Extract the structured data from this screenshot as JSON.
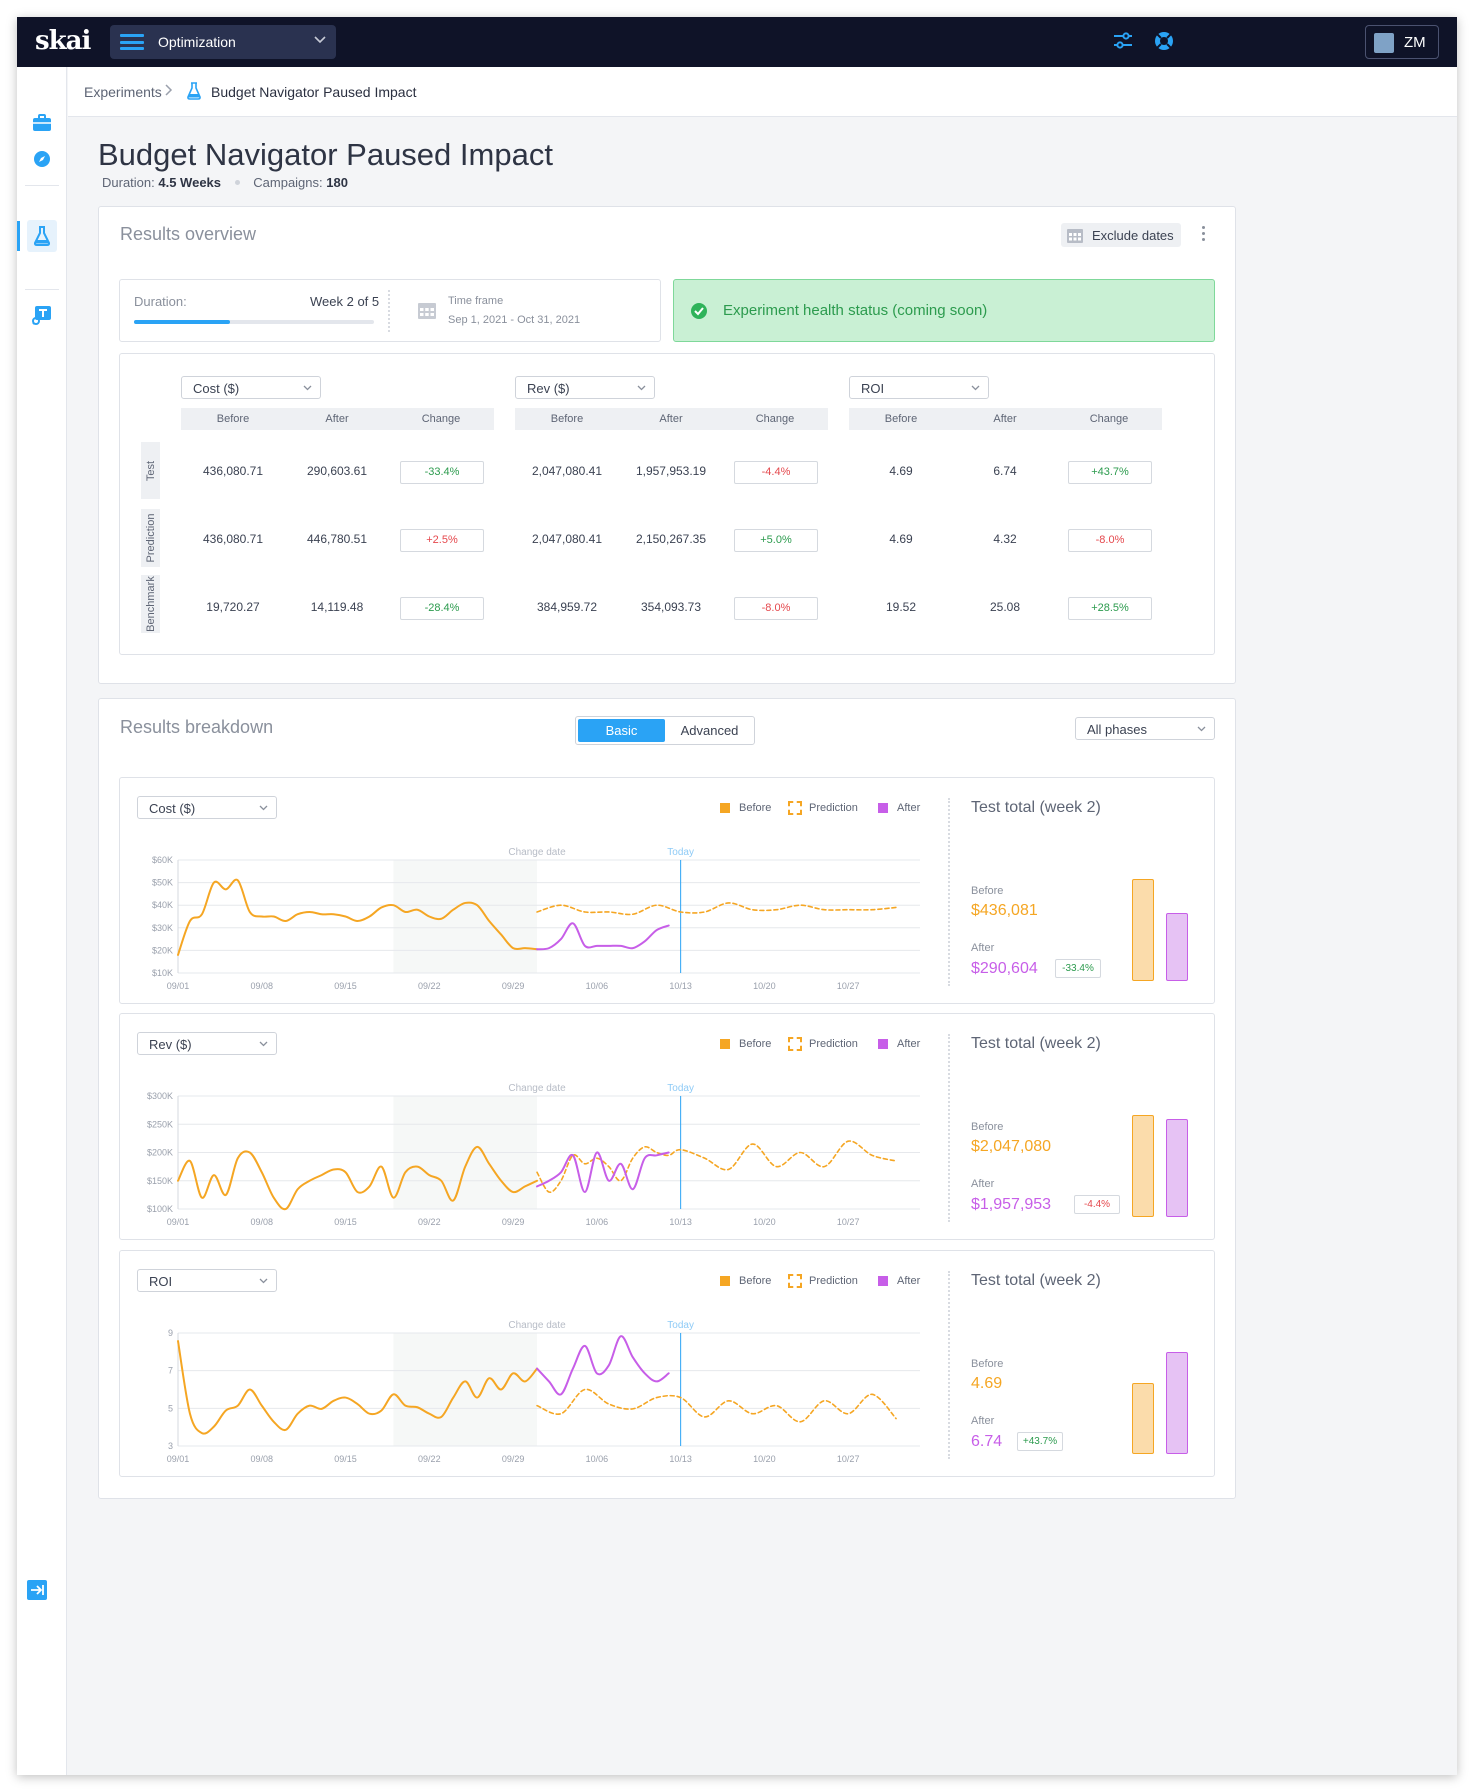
{
  "app": {
    "logo": "skai",
    "module": "Optimization",
    "user_initials": "ZM"
  },
  "breadcrumb": {
    "root": "Experiments",
    "current": "Budget Navigator Paused Impact"
  },
  "page": {
    "title": "Budget Navigator Paused Impact",
    "duration_label": "Duration:",
    "duration_value": "4.5 Weeks",
    "campaigns_label": "Campaigns:",
    "campaigns_value": "180"
  },
  "overview": {
    "title": "Results overview",
    "exclude_dates": "Exclude dates",
    "duration_label": "Duration:",
    "week_text": "Week 2 of 5",
    "progress_fraction": 0.4,
    "timeframe_label": "Time frame",
    "timeframe_value": "Sep 1, 2021 - Oct 31, 2021",
    "health": "Experiment health status (coming soon)"
  },
  "table": {
    "groups": [
      {
        "metric": "Cost ($)"
      },
      {
        "metric": "Rev ($)"
      },
      {
        "metric": "ROI"
      }
    ],
    "columns": [
      "Before",
      "After",
      "Change"
    ],
    "row_labels": [
      "Test",
      "Prediction",
      "Benchmark"
    ],
    "rows": [
      [
        [
          "436,080.71",
          "290,603.61",
          "-33.4%"
        ],
        [
          "2,047,080.41",
          "1,957,953.19",
          "-4.4%"
        ],
        [
          "4.69",
          "6.74",
          "+43.7%"
        ]
      ],
      [
        [
          "436,080.71",
          "446,780.51",
          "+2.5%"
        ],
        [
          "2,047,080.41",
          "2,150,267.35",
          "+5.0%"
        ],
        [
          "4.69",
          "4.32",
          "-8.0%"
        ]
      ],
      [
        [
          "19,720.27",
          "14,119.48",
          "-28.4%"
        ],
        [
          "384,959.72",
          "354,093.73",
          "-8.0%"
        ],
        [
          "19.52",
          "25.08",
          "+28.5%"
        ]
      ]
    ],
    "change_positive": [
      [
        true,
        false,
        true
      ],
      [
        false,
        true,
        false
      ],
      [
        true,
        false,
        true
      ]
    ]
  },
  "breakdown": {
    "title": "Results breakdown",
    "toggle": [
      "Basic",
      "Advanced"
    ],
    "phase_select": "All phases",
    "legend": [
      "Before",
      "Prediction",
      "After"
    ],
    "colors": {
      "before": "#f5a623",
      "after": "#c75ee8",
      "today": "#2aa3f5",
      "accent": "#2aa3f5"
    },
    "change_label": "Change date",
    "today_label": "Today",
    "total_title": "Test total (week 2)",
    "before_label": "Before",
    "after_label": "After"
  },
  "chart_data": [
    {
      "type": "line",
      "metric": "Cost ($)",
      "x_ticks": [
        "09/01",
        "09/08",
        "09/15",
        "09/22",
        "09/29",
        "10/06",
        "10/13",
        "10/20",
        "10/27"
      ],
      "y_ticks": [
        "$60K",
        "$50K",
        "$40K",
        "$30K",
        "$20K",
        "$10K"
      ],
      "ylim": [
        10000,
        60000
      ],
      "change_date_day": 30,
      "today_day": 42,
      "shaded_from_day": 18,
      "series": [
        {
          "name": "Before",
          "x": [
            0,
            1,
            2,
            3,
            4,
            5,
            6,
            7,
            8,
            9,
            10,
            11,
            12,
            13,
            14,
            15,
            16,
            17,
            18,
            19,
            20,
            21,
            22,
            23,
            24,
            25,
            26,
            27,
            28,
            29,
            30
          ],
          "y": [
            18000,
            33000,
            36000,
            50000,
            47000,
            51000,
            37000,
            35000,
            35000,
            33000,
            36000,
            37000,
            36000,
            36000,
            35000,
            33000,
            35000,
            39000,
            40000,
            37000,
            38000,
            35000,
            34000,
            38000,
            41000,
            40000,
            33000,
            27000,
            21000,
            21000,
            20500
          ]
        },
        {
          "name": "Prediction",
          "x": [
            30,
            32,
            34,
            36,
            38,
            40,
            42,
            44,
            46,
            48,
            50,
            52,
            54,
            56,
            58,
            60
          ],
          "y": [
            37000,
            40000,
            37000,
            37000,
            36000,
            40000,
            37000,
            37000,
            41000,
            38000,
            38000,
            40000,
            38000,
            38000,
            38000,
            39000
          ]
        },
        {
          "name": "After",
          "x": [
            30,
            31,
            32,
            33,
            34,
            35,
            36,
            37,
            38,
            39,
            40,
            41
          ],
          "y": [
            20500,
            21000,
            25000,
            32000,
            22000,
            22000,
            22000,
            22000,
            21000,
            24000,
            29000,
            31000
          ]
        }
      ],
      "totals": {
        "before": "$436,081",
        "after": "$290,604",
        "change": "-33.4%",
        "change_positive": true,
        "before_value": 436081,
        "after_value": 290604
      }
    },
    {
      "type": "line",
      "metric": "Rev ($)",
      "x_ticks": [
        "09/01",
        "09/08",
        "09/15",
        "09/22",
        "09/29",
        "10/06",
        "10/13",
        "10/20",
        "10/27"
      ],
      "y_ticks": [
        "$300K",
        "$250K",
        "$200K",
        "$150K",
        "$100K"
      ],
      "ylim": [
        100000,
        300000
      ],
      "change_date_day": 30,
      "today_day": 42,
      "shaded_from_day": 18,
      "series": [
        {
          "name": "Before",
          "x": [
            0,
            1,
            2,
            3,
            4,
            5,
            6,
            7,
            8,
            9,
            10,
            11,
            12,
            13,
            14,
            15,
            16,
            17,
            18,
            19,
            20,
            21,
            22,
            23,
            24,
            25,
            26,
            27,
            28,
            29,
            30
          ],
          "y": [
            150000,
            185000,
            120000,
            160000,
            125000,
            190000,
            200000,
            165000,
            120000,
            100000,
            135000,
            150000,
            160000,
            170000,
            165000,
            130000,
            140000,
            175000,
            120000,
            165000,
            175000,
            160000,
            150000,
            115000,
            175000,
            210000,
            180000,
            150000,
            130000,
            140000,
            150000
          ]
        },
        {
          "name": "Prediction",
          "x": [
            30,
            31,
            32,
            33,
            34,
            35,
            36,
            37,
            38,
            39,
            40,
            41,
            42,
            44,
            46,
            48,
            50,
            52,
            54,
            56,
            58,
            60
          ],
          "y": [
            165000,
            130000,
            150000,
            195000,
            180000,
            190000,
            175000,
            150000,
            190000,
            210000,
            200000,
            195000,
            205000,
            190000,
            170000,
            215000,
            175000,
            200000,
            175000,
            220000,
            195000,
            185000
          ]
        },
        {
          "name": "After",
          "x": [
            30,
            31,
            32,
            33,
            34,
            35,
            36,
            37,
            38,
            39,
            40,
            41
          ],
          "y": [
            140000,
            150000,
            165000,
            195000,
            130000,
            200000,
            150000,
            180000,
            135000,
            190000,
            195000,
            200000
          ]
        }
      ],
      "totals": {
        "before": "$2,047,080",
        "after": "$1,957,953",
        "change": "-4.4%",
        "change_positive": false,
        "before_value": 2047080,
        "after_value": 1957953
      }
    },
    {
      "type": "line",
      "metric": "ROI",
      "x_ticks": [
        "09/01",
        "09/08",
        "09/15",
        "09/22",
        "09/29",
        "10/06",
        "10/13",
        "10/20",
        "10/27"
      ],
      "y_ticks": [
        "9",
        "7",
        "5",
        "3"
      ],
      "ylim": [
        2,
        9
      ],
      "change_date_day": 30,
      "today_day": 42,
      "shaded_from_day": 18,
      "series": [
        {
          "name": "Before",
          "x": [
            0,
            1,
            2,
            3,
            4,
            5,
            6,
            7,
            8,
            9,
            10,
            11,
            12,
            13,
            14,
            15,
            16,
            17,
            18,
            19,
            20,
            21,
            22,
            23,
            24,
            25,
            26,
            27,
            28,
            29,
            30
          ],
          "y": [
            8.5,
            4,
            2.8,
            3.2,
            4.2,
            4.5,
            5.5,
            4.5,
            3.5,
            3.0,
            4.0,
            4.5,
            4.3,
            4.8,
            5.0,
            4.6,
            4.0,
            4.2,
            5.2,
            4.5,
            4.4,
            4.0,
            3.8,
            5.0,
            6.0,
            5.0,
            6.2,
            5.5,
            6.5,
            6.0,
            6.8
          ]
        },
        {
          "name": "Prediction",
          "x": [
            30,
            32,
            34,
            36,
            38,
            40,
            42,
            44,
            46,
            48,
            50,
            52,
            54,
            56,
            58,
            60
          ],
          "y": [
            4.5,
            4.0,
            5.5,
            4.6,
            4.3,
            5.0,
            5.0,
            3.8,
            4.8,
            4.0,
            4.5,
            3.5,
            4.8,
            4.0,
            5.2,
            3.7
          ]
        },
        {
          "name": "After",
          "x": [
            30,
            31,
            32,
            33,
            34,
            35,
            36,
            37,
            38,
            39,
            40,
            41
          ],
          "y": [
            6.8,
            6.0,
            5.2,
            6.8,
            8.2,
            6.5,
            7.0,
            8.8,
            7.5,
            6.5,
            6.0,
            6.5
          ]
        }
      ],
      "totals": {
        "before": "4.69",
        "after": "6.74",
        "change": "+43.7%",
        "change_positive": true,
        "before_value": 4.69,
        "after_value": 6.74
      }
    }
  ]
}
